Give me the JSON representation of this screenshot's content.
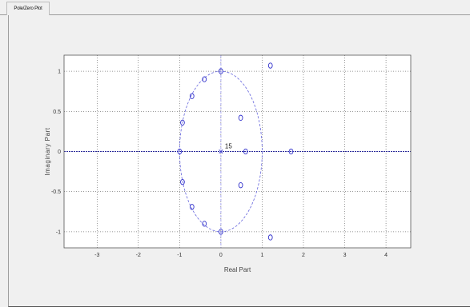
{
  "panel": {
    "tab_title": "Pole/Zero Plot"
  },
  "chart_data": {
    "type": "scatter",
    "title": "",
    "xlabel": "Real Part",
    "ylabel": "Imaginary Part",
    "xlim": [
      -3.8,
      4.6
    ],
    "ylim": [
      -1.2,
      1.2
    ],
    "xticks": [
      -3,
      -2,
      -1,
      0,
      1,
      2,
      3,
      4
    ],
    "yticks": [
      -1,
      -0.5,
      0,
      0.5,
      1
    ],
    "xtick_labels": [
      "-3",
      "-2",
      "-1",
      "0",
      "1",
      "2",
      "3",
      "4"
    ],
    "ytick_labels": [
      "-1",
      "-0.5",
      "0",
      "0.5",
      "1"
    ],
    "grid": true,
    "unit_circle": true,
    "zeros": [
      {
        "x": 0.0,
        "y": 1.0
      },
      {
        "x": -0.4,
        "y": 0.9
      },
      {
        "x": -0.7,
        "y": 0.69
      },
      {
        "x": -0.93,
        "y": 0.36
      },
      {
        "x": -1.0,
        "y": 0.0
      },
      {
        "x": -0.93,
        "y": -0.38
      },
      {
        "x": -0.7,
        "y": -0.69
      },
      {
        "x": -0.4,
        "y": -0.9
      },
      {
        "x": 0.0,
        "y": -1.0
      },
      {
        "x": 0.48,
        "y": 0.42
      },
      {
        "x": 0.48,
        "y": -0.42
      },
      {
        "x": 0.6,
        "y": 0.0
      },
      {
        "x": 1.7,
        "y": 0.0
      },
      {
        "x": 1.2,
        "y": 1.07
      },
      {
        "x": 1.2,
        "y": -1.07
      }
    ],
    "poles": [
      {
        "x": 0.0,
        "y": 0.0,
        "multiplicity_label": "15"
      }
    ]
  },
  "colors": {
    "zero_marker": "#3333cc",
    "unit_circle": "#6666dd",
    "imag_axis": "#9999ee",
    "real_axis": "#2a2a99",
    "grid": "#333333",
    "plot_bg": "#ffffff",
    "frame": "#555555"
  }
}
